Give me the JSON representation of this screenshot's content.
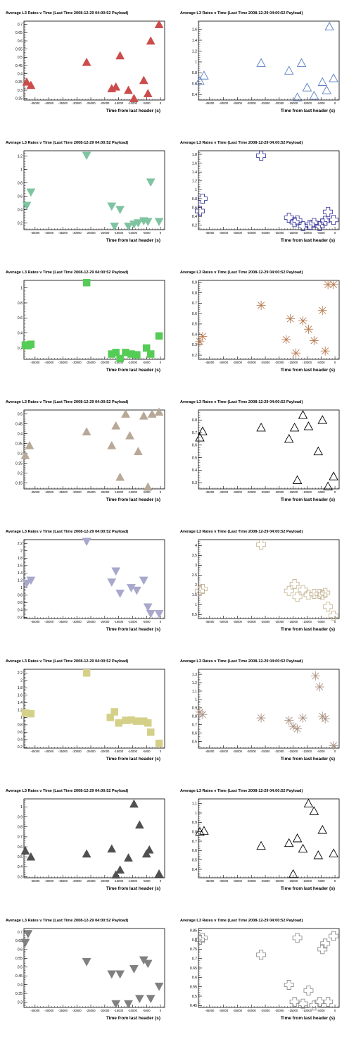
{
  "page": {
    "title": "Average L3 Rates v Time (Last Time 2008-12-29 04:00:52 Payload)",
    "xlabel": "Time from last header (s)"
  },
  "chart_data": [
    {
      "type": "scatter",
      "title": "Average L3 Rates v Time (Last Time 2008-12-29 04:00:52 Payload)",
      "xlabel": "Time from last header (s)",
      "ylabel": "",
      "marker": "triangle-up",
      "filled": true,
      "color": "#cc4b4b",
      "xlim": [
        -49000,
        1500
      ],
      "ylim": [
        0.24,
        0.72
      ],
      "xticks": [
        -45000,
        -40000,
        -35000,
        -30000,
        -25000,
        -20000,
        -15000,
        -10000,
        -5000,
        0
      ],
      "yticks": [
        0.25,
        0.3,
        0.35,
        0.4,
        0.45,
        0.5,
        0.55,
        0.6,
        0.65,
        0.7
      ],
      "x": [
        -48000,
        -46500,
        -26500,
        -17500,
        -16000,
        -14500,
        -11500,
        -9500,
        -6000,
        -4500,
        -3500,
        -500
      ],
      "y": [
        0.35,
        0.33,
        0.47,
        0.31,
        0.32,
        0.51,
        0.3,
        0.25,
        0.36,
        0.28,
        0.6,
        0.7
      ]
    },
    {
      "type": "scatter",
      "title": "Average L3 Rates v Time (Last Time 2008-12-29 04:00:52 Payload)",
      "xlabel": "Time from last header (s)",
      "ylabel": "",
      "marker": "triangle-up",
      "filled": false,
      "color": "#5b7fc4",
      "xlim": [
        -49000,
        1500
      ],
      "ylim": [
        0.3,
        1.75
      ],
      "xticks": [
        -45000,
        -40000,
        -35000,
        -30000,
        -25000,
        -20000,
        -15000,
        -10000,
        -5000,
        0
      ],
      "yticks": [
        0.4,
        0.6,
        0.8,
        1,
        1.2,
        1.4,
        1.6
      ],
      "x": [
        -48500,
        -47000,
        -26500,
        -16500,
        -13500,
        -12000,
        -10000,
        -7500,
        -4500,
        -3000,
        -2000,
        -500
      ],
      "y": [
        0.65,
        0.75,
        0.98,
        0.84,
        0.35,
        0.98,
        0.53,
        0.38,
        0.63,
        0.48,
        1.65,
        0.7
      ]
    },
    {
      "type": "scatter",
      "title": "Average L3 Rates v Time (Last Time 2008-12-29 04:00:52 Payload)",
      "xlabel": "Time from last header (s)",
      "ylabel": "",
      "marker": "triangle-down",
      "filled": true,
      "color": "#7fc4a0",
      "xlim": [
        -49000,
        1500
      ],
      "ylim": [
        0.1,
        1.28
      ],
      "xticks": [
        -45000,
        -40000,
        -35000,
        -30000,
        -25000,
        -20000,
        -15000,
        -10000,
        -5000,
        0
      ],
      "yticks": [
        0.2,
        0.4,
        0.6,
        0.8,
        1,
        1.2
      ],
      "x": [
        -48000,
        -46500,
        -26500,
        -17500,
        -16500,
        -14500,
        -11500,
        -9500,
        -8000,
        -6000,
        -4500,
        -3500,
        -500
      ],
      "y": [
        0.46,
        0.66,
        1.21,
        0.45,
        0.15,
        0.4,
        0.15,
        0.18,
        0.2,
        0.23,
        0.22,
        0.81,
        0.22
      ]
    },
    {
      "type": "scatter",
      "title": "Average L3 Rates v Time (Last Time 2008-12-29 04:00:52 Payload)",
      "xlabel": "Time from last header (s)",
      "ylabel": "",
      "marker": "cross",
      "filled": false,
      "color": "#4040a0",
      "xlim": [
        -49000,
        1500
      ],
      "ylim": [
        0.1,
        1.88
      ],
      "xticks": [
        -45000,
        -40000,
        -35000,
        -30000,
        -25000,
        -20000,
        -15000,
        -10000,
        -5000,
        0
      ],
      "yticks": [
        0.2,
        0.4,
        0.6,
        0.8,
        1,
        1.2,
        1.4,
        1.6,
        1.8
      ],
      "x": [
        -48500,
        -47500,
        -26500,
        -16500,
        -14500,
        -13500,
        -11500,
        -9000,
        -7500,
        -5500,
        -4500,
        -3500,
        -2500,
        -500
      ],
      "y": [
        0.52,
        0.8,
        1.77,
        0.37,
        0.27,
        0.31,
        0.18,
        0.21,
        0.25,
        0.18,
        0.24,
        0.3,
        0.5,
        0.32
      ]
    },
    {
      "type": "scatter",
      "title": "Average L3 Rates v Time (Last Time 2008-12-29 04:00:52 Payload)",
      "xlabel": "Time from last header (s)",
      "ylabel": "",
      "marker": "square",
      "filled": true,
      "color": "#55cc55",
      "xlim": [
        -49000,
        1500
      ],
      "ylim": [
        0.05,
        1.1
      ],
      "xticks": [
        -45000,
        -40000,
        -35000,
        -30000,
        -25000,
        -20000,
        -15000,
        -10000,
        -5000,
        0
      ],
      "yticks": [
        0.2,
        0.4,
        0.6,
        0.8,
        1
      ],
      "x": [
        -48500,
        -47500,
        -46500,
        -26500,
        -17500,
        -16000,
        -14500,
        -12500,
        -10500,
        -8500,
        -5000,
        -3500,
        -500
      ],
      "y": [
        0.24,
        0.23,
        0.25,
        1.07,
        0.12,
        0.14,
        0.06,
        0.14,
        0.12,
        0.11,
        0.2,
        0.12,
        0.36
      ]
    },
    {
      "type": "scatter",
      "title": "Average L3 Rates v Time (Last Time 2008-12-29 04:00:52 Payload)",
      "xlabel": "Time from last header (s)",
      "ylabel": "",
      "marker": "asterisk",
      "filled": false,
      "color": "#b87a50",
      "xlim": [
        -49000,
        1500
      ],
      "ylim": [
        0.16,
        0.92
      ],
      "xticks": [
        -45000,
        -40000,
        -35000,
        -30000,
        -25000,
        -20000,
        -15000,
        -10000,
        -5000,
        0
      ],
      "yticks": [
        0.2,
        0.3,
        0.4,
        0.5,
        0.6,
        0.7,
        0.8,
        0.9
      ],
      "x": [
        -48500,
        -47500,
        -26500,
        -17500,
        -16000,
        -14000,
        -11500,
        -9500,
        -7500,
        -4500,
        -3500,
        -2500,
        -500
      ],
      "y": [
        0.33,
        0.38,
        0.68,
        0.35,
        0.55,
        0.22,
        0.53,
        0.45,
        0.34,
        0.63,
        0.24,
        0.88,
        0.88
      ]
    },
    {
      "type": "scatter",
      "title": "Average L3 Rates v Time (Last Time 2008-12-29 04:00:52 Payload)",
      "xlabel": "Time from last header (s)",
      "ylabel": "",
      "marker": "triangle-up",
      "filled": true,
      "color": "#b8a898",
      "xlim": [
        -49000,
        1500
      ],
      "ylim": [
        0.12,
        0.52
      ],
      "xticks": [
        -45000,
        -40000,
        -35000,
        -30000,
        -25000,
        -20000,
        -15000,
        -10000,
        -5000,
        0
      ],
      "yticks": [
        0.15,
        0.2,
        0.25,
        0.3,
        0.35,
        0.4,
        0.45,
        0.5
      ],
      "x": [
        -48500,
        -47000,
        -26500,
        -17500,
        -16000,
        -14500,
        -12500,
        -11000,
        -8000,
        -6000,
        -4500,
        -3000,
        -500
      ],
      "y": [
        0.29,
        0.34,
        0.41,
        0.34,
        0.44,
        0.18,
        0.5,
        0.39,
        0.31,
        0.49,
        0.13,
        0.5,
        0.51
      ]
    },
    {
      "type": "scatter",
      "title": "Average L3 Rates v Time (Last Time 2008-12-29 04:00:52 Payload)",
      "xlabel": "Time from last header (s)",
      "ylabel": "",
      "marker": "triangle-up",
      "filled": false,
      "color": "#000000",
      "xlim": [
        -49000,
        1500
      ],
      "ylim": [
        0.25,
        0.88
      ],
      "xticks": [
        -45000,
        -40000,
        -35000,
        -30000,
        -25000,
        -20000,
        -15000,
        -10000,
        -5000,
        0
      ],
      "yticks": [
        0.3,
        0.4,
        0.5,
        0.6,
        0.7,
        0.8
      ],
      "x": [
        -48500,
        -47500,
        -26500,
        -16500,
        -14500,
        -13500,
        -11500,
        -9500,
        -6000,
        -4500,
        -2500,
        -500
      ],
      "y": [
        0.66,
        0.71,
        0.74,
        0.65,
        0.74,
        0.32,
        0.84,
        0.75,
        0.55,
        0.8,
        0.27,
        0.35
      ]
    },
    {
      "type": "scatter",
      "title": "Average L3 Rates v Time (Last Time 2008-12-29 04:00:52 Payload)",
      "xlabel": "Time from last header (s)",
      "ylabel": "",
      "marker": "triangle-down",
      "filled": true,
      "color": "#a8a8cc",
      "xlim": [
        -49000,
        1500
      ],
      "ylim": [
        0.17,
        2.3
      ],
      "xticks": [
        -45000,
        -40000,
        -35000,
        -30000,
        -25000,
        -20000,
        -15000,
        -10000,
        -5000,
        0
      ],
      "yticks": [
        0.2,
        0.4,
        0.6,
        0.8,
        1,
        1.2,
        1.4,
        1.6,
        1.8,
        2,
        2.2
      ],
      "x": [
        -48000,
        -46500,
        -26500,
        -17500,
        -16000,
        -14500,
        -10500,
        -8500,
        -6000,
        -4500,
        -3500,
        -500
      ],
      "y": [
        1.12,
        1.2,
        2.25,
        1.15,
        1.45,
        0.85,
        1.0,
        0.93,
        1.2,
        0.48,
        0.3,
        0.3
      ]
    },
    {
      "type": "scatter",
      "title": "Average L3 Rates v Time (Last Time 2008-12-29 04:00:52 Payload)",
      "xlabel": "Time from last header (s)",
      "ylabel": "",
      "marker": "cross",
      "filled": false,
      "color": "#c8b898",
      "xlim": [
        -49000,
        1500
      ],
      "ylim": [
        0.3,
        4.3
      ],
      "xticks": [
        -45000,
        -40000,
        -35000,
        -30000,
        -25000,
        -20000,
        -15000,
        -10000,
        -5000,
        0
      ],
      "yticks": [
        0.5,
        1,
        1.5,
        2,
        2.5,
        3,
        3.5,
        4
      ],
      "x": [
        -48500,
        -47500,
        -26500,
        -16500,
        -14500,
        -13500,
        -11500,
        -9500,
        -7500,
        -5500,
        -4500,
        -3500,
        -2500,
        -500
      ],
      "y": [
        1.7,
        1.8,
        4.05,
        1.7,
        2.05,
        1.4,
        1.75,
        1.5,
        1.55,
        1.55,
        1.5,
        1.6,
        0.9,
        0.45
      ]
    },
    {
      "type": "scatter",
      "title": "Average L3 Rates v Time (Last Time 2008-12-29 04:00:52 Payload)",
      "xlabel": "Time from last header (s)",
      "ylabel": "",
      "marker": "square",
      "filled": true,
      "color": "#d4d088",
      "xlim": [
        -49000,
        1500
      ],
      "ylim": [
        0.17,
        2.3
      ],
      "xticks": [
        -45000,
        -40000,
        -35000,
        -30000,
        -25000,
        -20000,
        -15000,
        -10000,
        -5000,
        0
      ],
      "yticks": [
        0.2,
        0.4,
        0.6,
        0.8,
        1,
        1.2,
        1.4,
        1.6,
        1.8,
        2,
        2.2
      ],
      "x": [
        -48500,
        -46500,
        -26500,
        -18000,
        -16500,
        -15000,
        -12500,
        -10500,
        -8500,
        -6000,
        -4500,
        -3500,
        -500
      ],
      "y": [
        1.12,
        1.1,
        2.2,
        1.0,
        1.15,
        0.85,
        0.92,
        0.93,
        0.9,
        0.9,
        0.85,
        0.6,
        0.3
      ]
    },
    {
      "type": "scatter",
      "title": "Average L3 Rates v Time (Last Time 2008-12-29 04:00:52 Payload)",
      "xlabel": "Time from last header (s)",
      "ylabel": "",
      "marker": "asterisk",
      "filled": false,
      "color": "#a89080",
      "xlim": [
        -49000,
        1500
      ],
      "ylim": [
        0.42,
        1.36
      ],
      "xticks": [
        -45000,
        -40000,
        -35000,
        -30000,
        -25000,
        -20000,
        -15000,
        -10000,
        -5000,
        0
      ],
      "yticks": [
        0.5,
        0.6,
        0.7,
        0.8,
        0.9,
        1,
        1.1,
        1.2,
        1.3
      ],
      "x": [
        -48500,
        -47500,
        -26500,
        -16500,
        -15000,
        -13500,
        -11500,
        -7000,
        -5500,
        -4500,
        -3500,
        -500
      ],
      "y": [
        0.85,
        0.82,
        0.78,
        0.75,
        0.68,
        0.65,
        0.78,
        1.28,
        1.15,
        0.8,
        0.77,
        0.45
      ]
    },
    {
      "type": "scatter",
      "title": "Average L3 Rates v Time (Last Time 2008-12-29 04:00:52 Payload)",
      "xlabel": "Time from last header (s)",
      "ylabel": "",
      "marker": "triangle-up",
      "filled": true,
      "color": "#505050",
      "xlim": [
        -49000,
        1500
      ],
      "ylim": [
        0.29,
        1.08
      ],
      "xticks": [
        -45000,
        -40000,
        -35000,
        -30000,
        -25000,
        -20000,
        -15000,
        -10000,
        -5000,
        0
      ],
      "yticks": [
        0.3,
        0.4,
        0.5,
        0.6,
        0.7,
        0.8,
        0.9,
        1
      ],
      "x": [
        -48500,
        -46500,
        -26500,
        -17500,
        -16000,
        -14500,
        -11500,
        -9500,
        -7500,
        -5000,
        -4000,
        -500
      ],
      "y": [
        0.56,
        0.5,
        0.53,
        0.58,
        0.32,
        0.37,
        0.49,
        1.03,
        0.82,
        0.53,
        0.57,
        0.33
      ]
    },
    {
      "type": "scatter",
      "title": "Average L3 Rates v Time (Last Time 2008-12-29 04:00:52 Payload)",
      "xlabel": "Time from last header (s)",
      "ylabel": "",
      "marker": "triangle-up",
      "filled": false,
      "color": "#000000",
      "xlim": [
        -49000,
        1500
      ],
      "ylim": [
        0.31,
        1.15
      ],
      "xticks": [
        -45000,
        -40000,
        -35000,
        -30000,
        -25000,
        -20000,
        -15000,
        -10000,
        -5000,
        0
      ],
      "yticks": [
        0.4,
        0.5,
        0.6,
        0.7,
        0.8,
        0.9,
        1,
        1.1
      ],
      "x": [
        -48500,
        -47000,
        -26500,
        -16500,
        -15000,
        -13500,
        -11500,
        -9500,
        -7500,
        -6000,
        -4500,
        -500
      ],
      "y": [
        0.8,
        0.81,
        0.65,
        0.68,
        0.35,
        0.73,
        0.62,
        1.1,
        1.02,
        0.55,
        0.82,
        0.57
      ]
    },
    {
      "type": "scatter",
      "title": "Average L3 Rates v Time (Last Time 2008-12-29 04:00:52 Payload)",
      "xlabel": "Time from last header (s)",
      "ylabel": "",
      "marker": "triangle-down",
      "filled": true,
      "color": "#808080",
      "xlim": [
        -49000,
        1500
      ],
      "ylim": [
        0.27,
        0.72
      ],
      "xticks": [
        -45000,
        -40000,
        -35000,
        -30000,
        -25000,
        -20000,
        -15000,
        -10000,
        -5000,
        0
      ],
      "yticks": [
        0.3,
        0.35,
        0.4,
        0.45,
        0.5,
        0.55,
        0.6,
        0.65,
        0.7
      ],
      "x": [
        -48500,
        -47500,
        -26500,
        -17500,
        -16000,
        -14500,
        -11500,
        -9500,
        -7500,
        -6000,
        -4500,
        -3500,
        -500
      ],
      "y": [
        0.64,
        0.69,
        0.53,
        0.46,
        0.29,
        0.46,
        0.29,
        0.49,
        0.32,
        0.54,
        0.52,
        0.32,
        0.39
      ]
    },
    {
      "type": "scatter",
      "title": "Average L3 Rates v Time (Last Time 2008-12-29 04:00:52 Payload)",
      "xlabel": "Time from last header (s)",
      "ylabel": "",
      "marker": "cross",
      "filled": false,
      "color": "#909090",
      "xlim": [
        -49000,
        1500
      ],
      "ylim": [
        0.44,
        0.86
      ],
      "xticks": [
        -45000,
        -40000,
        -35000,
        -30000,
        -25000,
        -20000,
        -15000,
        -10000,
        -5000,
        0
      ],
      "yticks": [
        0.45,
        0.5,
        0.55,
        0.6,
        0.65,
        0.7,
        0.75,
        0.8,
        0.85
      ],
      "x": [
        -48500,
        -47500,
        -26500,
        -16500,
        -14500,
        -13500,
        -11500,
        -9500,
        -7500,
        -5500,
        -4500,
        -3500,
        -2500,
        -500
      ],
      "y": [
        0.8,
        0.81,
        0.72,
        0.56,
        0.47,
        0.81,
        0.46,
        0.53,
        0.45,
        0.47,
        0.75,
        0.78,
        0.47,
        0.82
      ]
    }
  ]
}
